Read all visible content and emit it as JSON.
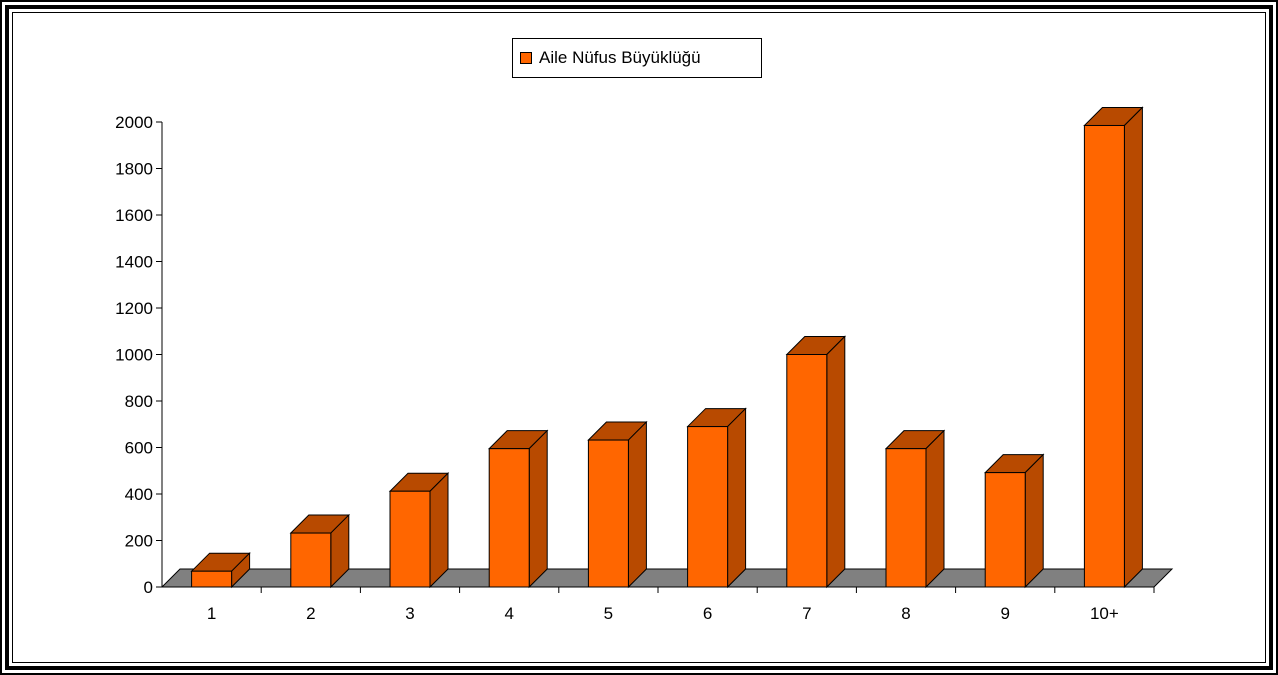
{
  "chart_data": {
    "type": "bar",
    "legend": [
      "Aile Nüfus Büyüklüğü"
    ],
    "legend_position": "top-center",
    "categories": [
      "1",
      "2",
      "3",
      "4",
      "5",
      "6",
      "7",
      "8",
      "9",
      "10+"
    ],
    "series": [
      {
        "name": "Aile Nüfus Büyüklüğü",
        "values": [
          68,
          232,
          412,
          595,
          632,
          690,
          1000,
          595,
          492,
          1985
        ]
      }
    ],
    "y_ticks": [
      "0",
      "200",
      "400",
      "600",
      "800",
      "1000",
      "1200",
      "1400",
      "1600",
      "1800",
      "2000"
    ],
    "ylim": [
      0,
      2000
    ],
    "grid": false,
    "style_3d": true,
    "colors": {
      "bar_front": "#ff6600",
      "bar_top": "#b84a00",
      "floor": "#808080",
      "axis": "#000000"
    }
  }
}
